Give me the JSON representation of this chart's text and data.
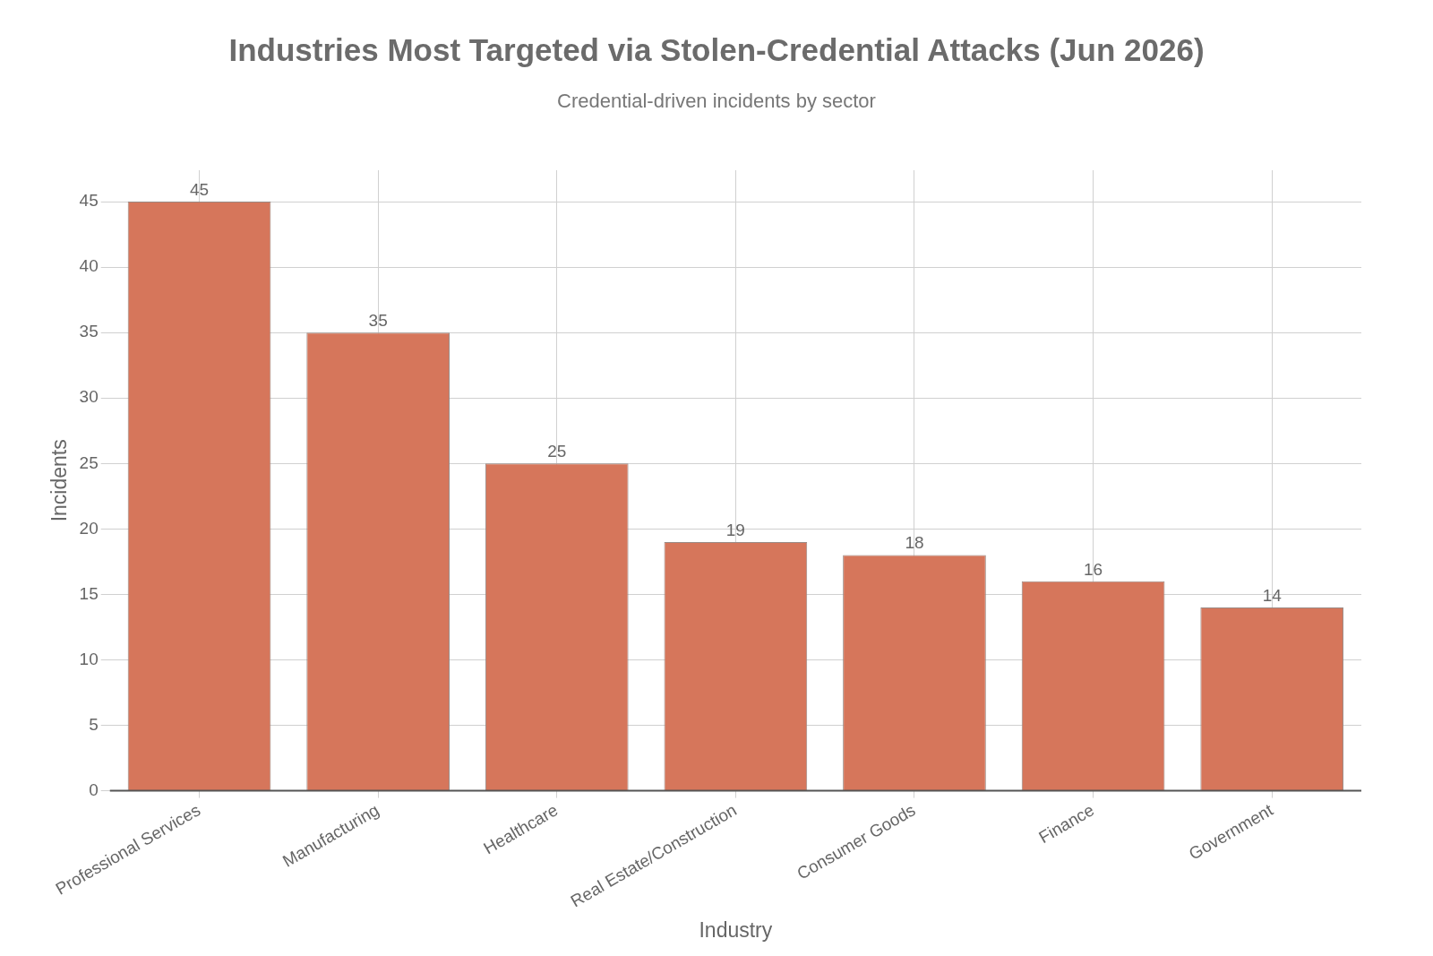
{
  "chart_data": {
    "type": "bar",
    "title": "Industries Most Targeted via Stolen-Credential Attacks (Jun 2026)",
    "subtitle": "Credential-driven incidents by sector",
    "xlabel": "Industry",
    "ylabel": "Incidents",
    "categories": [
      "Professional Services",
      "Manufacturing",
      "Healthcare",
      "Real Estate/Construction",
      "Consumer Goods",
      "Finance",
      "Government"
    ],
    "values": [
      45,
      35,
      25,
      19,
      18,
      16,
      14
    ],
    "color": "#d6765b",
    "ylim": [
      0,
      47.4
    ],
    "yticks": [
      0,
      5,
      10,
      15,
      20,
      25,
      30,
      35,
      40,
      45
    ],
    "grid": true,
    "data_labels": true,
    "legend": false
  }
}
